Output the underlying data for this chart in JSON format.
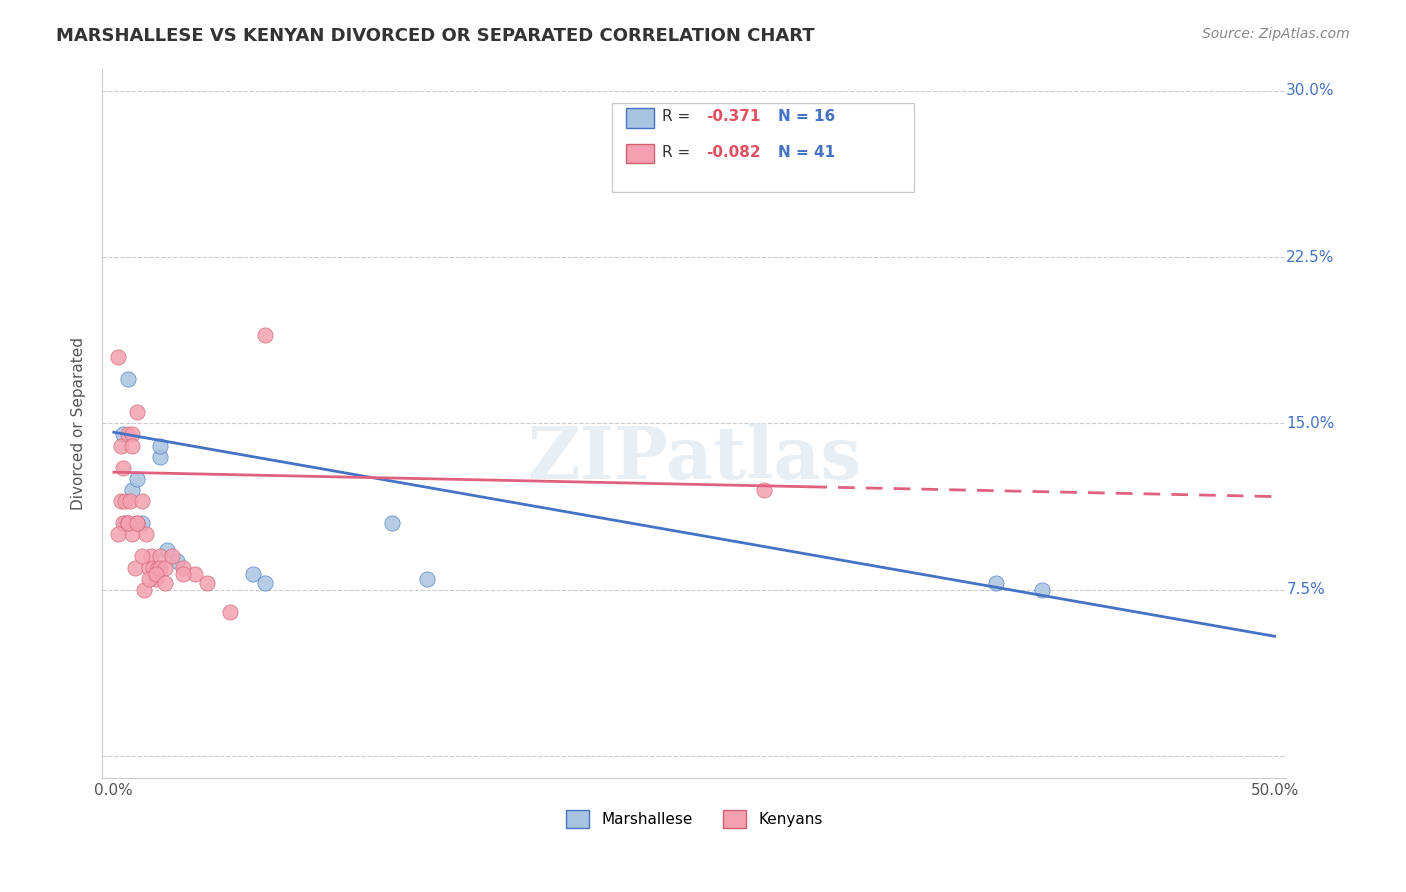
{
  "title": "MARSHALLESE VS KENYAN DIVORCED OR SEPARATED CORRELATION CHART",
  "source": "Source: ZipAtlas.com",
  "ylabel": "Divorced or Separated",
  "marshallese_color": "#a8c4e0",
  "kenyan_color": "#f4a0b0",
  "trendline_blue": "#4472c4",
  "trendline_pink": "#e06080",
  "marsh_edge": "#4472c4",
  "kenyan_edge": "#d06070",
  "marshallese_x": [
    0.004,
    0.006,
    0.008,
    0.01,
    0.012,
    0.02,
    0.02,
    0.027,
    0.06,
    0.065,
    0.12,
    0.135,
    0.38,
    0.4,
    0.005,
    0.023
  ],
  "marshallese_y": [
    0.145,
    0.17,
    0.12,
    0.125,
    0.105,
    0.135,
    0.14,
    0.088,
    0.082,
    0.078,
    0.105,
    0.08,
    0.078,
    0.075,
    0.105,
    0.093
  ],
  "kenyan_x": [
    0.002,
    0.003,
    0.003,
    0.004,
    0.005,
    0.006,
    0.006,
    0.007,
    0.008,
    0.008,
    0.009,
    0.01,
    0.01,
    0.012,
    0.013,
    0.014,
    0.015,
    0.016,
    0.017,
    0.018,
    0.019,
    0.02,
    0.02,
    0.022,
    0.025,
    0.03,
    0.035,
    0.04,
    0.05,
    0.065,
    0.28,
    0.002,
    0.004,
    0.006,
    0.008,
    0.01,
    0.012,
    0.015,
    0.018,
    0.022,
    0.03
  ],
  "kenyan_y": [
    0.18,
    0.14,
    0.115,
    0.105,
    0.115,
    0.145,
    0.105,
    0.115,
    0.145,
    0.1,
    0.085,
    0.155,
    0.105,
    0.115,
    0.075,
    0.1,
    0.085,
    0.09,
    0.085,
    0.08,
    0.085,
    0.09,
    0.085,
    0.085,
    0.09,
    0.085,
    0.082,
    0.078,
    0.065,
    0.19,
    0.12,
    0.1,
    0.13,
    0.105,
    0.14,
    0.105,
    0.09,
    0.08,
    0.082,
    0.078,
    0.082
  ],
  "blue_line_x": [
    0.0,
    0.5
  ],
  "blue_line_y": [
    0.146,
    0.054
  ],
  "pink_line_x": [
    0.0,
    0.5
  ],
  "pink_line_y_start": 0.128,
  "pink_line_y_end": 0.117,
  "pink_split": 0.3,
  "xlim": [
    -0.005,
    0.505
  ],
  "ylim": [
    -0.01,
    0.31
  ],
  "xticks": [
    0.0,
    0.1,
    0.2,
    0.3,
    0.4,
    0.5
  ],
  "xticklabels": [
    "0.0%",
    "",
    "",
    "",
    "",
    "50.0%"
  ],
  "ytick_values": [
    0.0,
    0.075,
    0.15,
    0.225,
    0.3
  ],
  "ytick_right_labels": [
    "",
    "7.5%",
    "15.0%",
    "22.5%",
    "30.0%"
  ],
  "right_label_color": "#4472c4",
  "grid_color": "#cccccc",
  "watermark_text": "ZIPatlas",
  "legend_r1": "R =  -0.371",
  "legend_n1": "N = 16",
  "legend_r2": "R =  -0.082",
  "legend_n2": "N = 41",
  "legend_value_color": "#e05060",
  "legend_n_color": "#4472c4"
}
